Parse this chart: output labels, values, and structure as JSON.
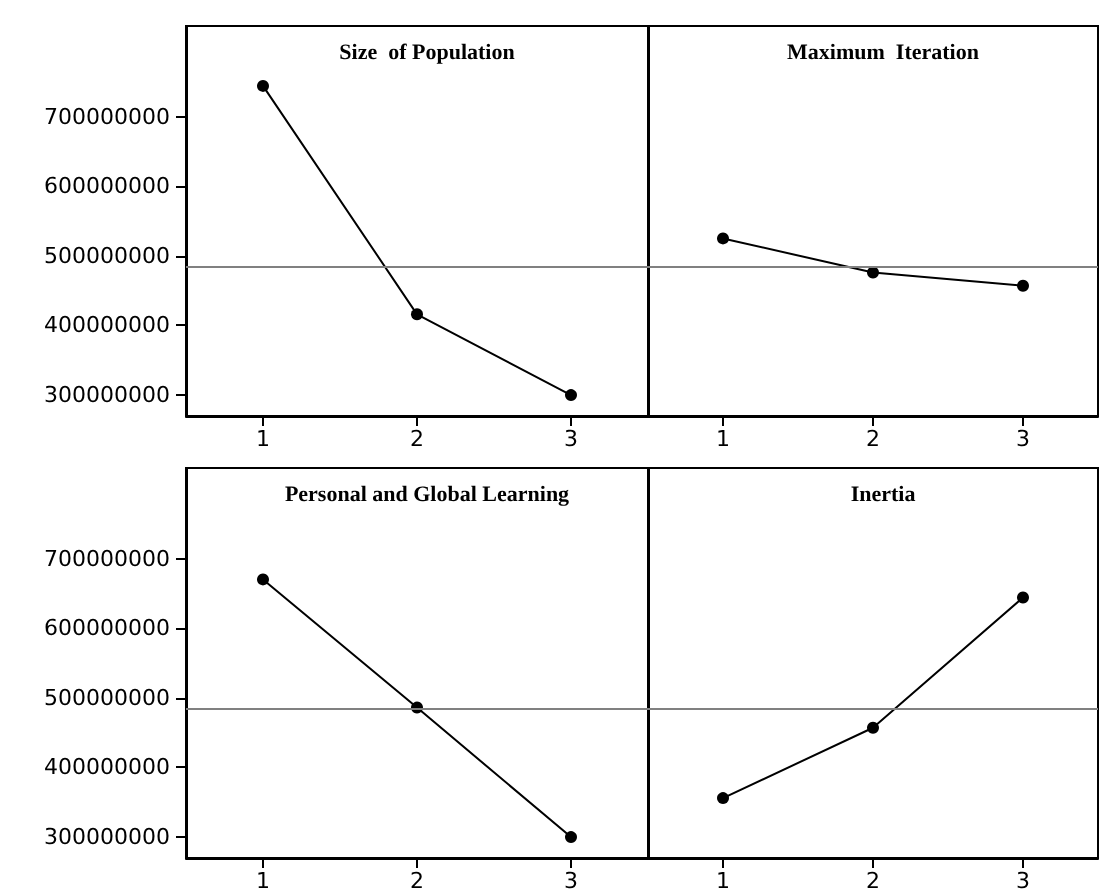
{
  "chart_data": [
    {
      "type": "line",
      "title": "Size  of Population",
      "categories": [
        "1",
        "2",
        "3"
      ],
      "series": [
        {
          "color": "#000000",
          "values": [
            744000000,
            416000000,
            300000000
          ]
        }
      ],
      "ylim": [
        270000000,
        830000000
      ],
      "yticks": [
        300000000,
        400000000,
        500000000,
        600000000,
        700000000
      ],
      "ref_lines": [
        {
          "axis": "y",
          "value": 484000000,
          "color": "#808080"
        }
      ],
      "marker": "circle",
      "grid": false
    },
    {
      "type": "line",
      "title": "Maximum  Iteration",
      "categories": [
        "1",
        "2",
        "3"
      ],
      "series": [
        {
          "color": "#000000",
          "values": [
            525000000,
            476000000,
            457000000
          ]
        }
      ],
      "ylim": [
        270000000,
        830000000
      ],
      "yticks": [
        300000000,
        400000000,
        500000000,
        600000000,
        700000000
      ],
      "ref_lines": [
        {
          "axis": "y",
          "value": 484000000,
          "color": "#808080"
        }
      ],
      "marker": "circle",
      "grid": false,
      "tick_labels": "x"
    },
    {
      "type": "line",
      "title": "Personal and Global Learning",
      "categories": [
        "1",
        "2",
        "3"
      ],
      "series": [
        {
          "color": "#000000",
          "values": [
            670000000,
            486000000,
            300000000
          ]
        }
      ],
      "ylim": [
        270000000,
        830000000
      ],
      "yticks": [
        300000000,
        400000000,
        500000000,
        600000000,
        700000000
      ],
      "ref_lines": [
        {
          "axis": "y",
          "value": 484000000,
          "color": "#808080"
        }
      ],
      "marker": "circle",
      "grid": false
    },
    {
      "type": "line",
      "title": "Inertia",
      "categories": [
        "1",
        "2",
        "3"
      ],
      "series": [
        {
          "color": "#000000",
          "values": [
            356000000,
            457000000,
            644000000
          ]
        }
      ],
      "ylim": [
        270000000,
        830000000
      ],
      "yticks": [
        300000000,
        400000000,
        500000000,
        600000000,
        700000000
      ],
      "ref_lines": [
        {
          "axis": "y",
          "value": 484000000,
          "color": "#808080"
        }
      ],
      "marker": "circle",
      "grid": false,
      "tick_labels": "x"
    }
  ]
}
